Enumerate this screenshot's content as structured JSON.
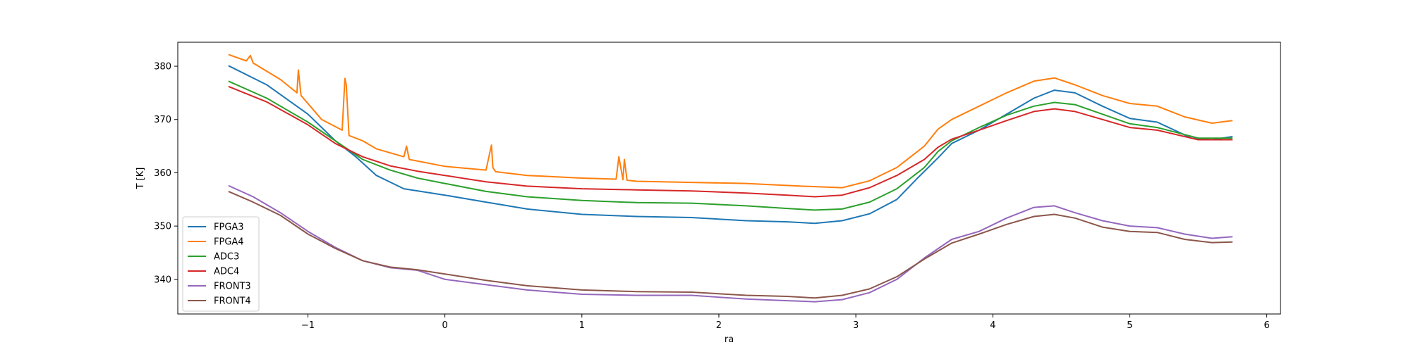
{
  "chart_data": {
    "type": "line",
    "title": "",
    "xlabel": "ra",
    "ylabel": "T [K]",
    "xlim": [
      -1.95,
      6.1
    ],
    "ylim": [
      333.5,
      384.5
    ],
    "xticks": [
      -1,
      0,
      1,
      2,
      3,
      4,
      5,
      6
    ],
    "xtick_labels": [
      "−1",
      "0",
      "1",
      "2",
      "3",
      "4",
      "5",
      "6"
    ],
    "yticks": [
      340,
      350,
      360,
      370,
      380
    ],
    "ytick_labels": [
      "340",
      "350",
      "360",
      "370",
      "380"
    ],
    "grid": false,
    "legend_position": "lower-left",
    "series": [
      {
        "name": "FPGA3",
        "color": "#1f77b4",
        "x": [
          -1.58,
          -1.3,
          -1.0,
          -0.8,
          -0.65,
          -0.5,
          -0.3,
          0.0,
          0.3,
          0.6,
          1.0,
          1.4,
          1.8,
          2.2,
          2.5,
          2.7,
          2.9,
          3.1,
          3.3,
          3.45,
          3.6,
          3.7,
          3.9,
          4.1,
          4.3,
          4.45,
          4.6,
          4.8,
          5.0,
          5.2,
          5.45,
          5.6,
          5.75
        ],
        "y": [
          380.1,
          376.5,
          371.0,
          366.0,
          363.0,
          359.5,
          357.0,
          355.8,
          354.5,
          353.2,
          352.2,
          351.8,
          351.6,
          351.0,
          350.8,
          350.5,
          351.0,
          352.3,
          355.0,
          359.0,
          362.8,
          365.5,
          368.0,
          371.0,
          374.0,
          375.5,
          375.0,
          372.5,
          370.2,
          369.5,
          366.5,
          366.2,
          366.8
        ]
      },
      {
        "name": "FPGA4",
        "color": "#ff7f0e",
        "x": [
          -1.58,
          -1.45,
          -1.42,
          -1.4,
          -1.2,
          -1.08,
          -1.07,
          -1.05,
          -0.9,
          -0.75,
          -0.73,
          -0.72,
          -0.7,
          -0.6,
          -0.5,
          -0.3,
          -0.28,
          -0.26,
          0.0,
          0.3,
          0.34,
          0.35,
          0.37,
          0.6,
          1.0,
          1.25,
          1.27,
          1.3,
          1.31,
          1.33,
          1.4,
          1.8,
          2.2,
          2.6,
          2.9,
          3.1,
          3.3,
          3.5,
          3.6,
          3.7,
          3.9,
          4.1,
          4.3,
          4.45,
          4.6,
          4.8,
          5.0,
          5.2,
          5.4,
          5.6,
          5.75
        ],
        "y": [
          382.2,
          381.0,
          382.0,
          380.6,
          377.5,
          375.0,
          379.3,
          374.5,
          370.0,
          368.0,
          377.7,
          376.5,
          367.0,
          366.0,
          364.5,
          363.0,
          365.0,
          362.5,
          361.2,
          360.5,
          365.2,
          361.0,
          360.2,
          359.5,
          359.0,
          358.8,
          363.0,
          358.7,
          362.5,
          358.6,
          358.4,
          358.2,
          358.0,
          357.5,
          357.2,
          358.5,
          361.0,
          365.0,
          368.2,
          370.0,
          372.5,
          375.0,
          377.2,
          377.8,
          376.5,
          374.5,
          373.0,
          372.5,
          370.5,
          369.3,
          369.8
        ]
      },
      {
        "name": "ADC3",
        "color": "#2ca02c",
        "x": [
          -1.58,
          -1.3,
          -1.0,
          -0.8,
          -0.6,
          -0.4,
          -0.2,
          0.0,
          0.3,
          0.6,
          1.0,
          1.4,
          1.8,
          2.2,
          2.5,
          2.7,
          2.9,
          3.1,
          3.3,
          3.5,
          3.6,
          3.7,
          3.9,
          4.1,
          4.3,
          4.45,
          4.6,
          4.8,
          5.0,
          5.2,
          5.5,
          5.75
        ],
        "y": [
          377.2,
          374.0,
          369.5,
          366.0,
          362.5,
          360.5,
          359.0,
          358.0,
          356.5,
          355.5,
          354.8,
          354.4,
          354.3,
          353.8,
          353.3,
          353.0,
          353.2,
          354.5,
          357.0,
          361.0,
          364.0,
          366.0,
          368.5,
          370.8,
          372.5,
          373.2,
          372.8,
          371.0,
          369.2,
          368.5,
          366.5,
          366.5
        ]
      },
      {
        "name": "ADC4",
        "color": "#d62728",
        "x": [
          -1.58,
          -1.3,
          -1.0,
          -0.8,
          -0.6,
          -0.4,
          -0.2,
          0.0,
          0.3,
          0.6,
          1.0,
          1.4,
          1.8,
          2.2,
          2.5,
          2.7,
          2.9,
          3.1,
          3.3,
          3.5,
          3.6,
          3.7,
          3.9,
          4.1,
          4.3,
          4.45,
          4.6,
          4.8,
          5.0,
          5.2,
          5.5,
          5.75
        ],
        "y": [
          376.2,
          373.3,
          369.0,
          365.5,
          363.0,
          361.3,
          360.3,
          359.5,
          358.3,
          357.5,
          357.0,
          356.8,
          356.6,
          356.2,
          355.8,
          355.5,
          355.8,
          357.2,
          359.5,
          362.5,
          364.8,
          366.3,
          368.0,
          369.8,
          371.5,
          372.0,
          371.5,
          370.0,
          368.5,
          368.0,
          366.2,
          366.2
        ]
      },
      {
        "name": "FRONT3",
        "color": "#9467bd",
        "x": [
          -1.58,
          -1.4,
          -1.2,
          -1.0,
          -0.8,
          -0.6,
          -0.4,
          -0.2,
          0.0,
          0.3,
          0.6,
          1.0,
          1.4,
          1.8,
          2.2,
          2.5,
          2.7,
          2.9,
          3.1,
          3.3,
          3.5,
          3.7,
          3.9,
          4.1,
          4.3,
          4.45,
          4.6,
          4.8,
          5.0,
          5.2,
          5.4,
          5.6,
          5.75
        ],
        "y": [
          357.6,
          355.5,
          352.5,
          349.0,
          346.0,
          343.5,
          342.2,
          341.7,
          340.0,
          339.0,
          338.0,
          337.2,
          337.0,
          337.0,
          336.3,
          336.0,
          335.8,
          336.2,
          337.5,
          340.0,
          344.0,
          347.5,
          349.0,
          351.5,
          353.5,
          353.8,
          352.5,
          351.0,
          350.0,
          349.7,
          348.5,
          347.7,
          348.0
        ]
      },
      {
        "name": "FRONT4",
        "color": "#8c564b",
        "x": [
          -1.58,
          -1.4,
          -1.2,
          -1.0,
          -0.8,
          -0.6,
          -0.4,
          -0.2,
          0.0,
          0.3,
          0.6,
          1.0,
          1.4,
          1.8,
          2.2,
          2.5,
          2.7,
          2.9,
          3.1,
          3.3,
          3.5,
          3.7,
          3.9,
          4.1,
          4.3,
          4.45,
          4.6,
          4.8,
          5.0,
          5.2,
          5.4,
          5.6,
          5.75
        ],
        "y": [
          356.5,
          354.5,
          352.0,
          348.5,
          345.8,
          343.5,
          342.3,
          341.8,
          341.0,
          339.8,
          338.8,
          338.0,
          337.7,
          337.6,
          337.0,
          336.8,
          336.5,
          337.0,
          338.2,
          340.5,
          343.8,
          346.8,
          348.5,
          350.3,
          351.8,
          352.2,
          351.5,
          349.8,
          349.0,
          348.8,
          347.5,
          346.9,
          347.0
        ]
      }
    ]
  }
}
